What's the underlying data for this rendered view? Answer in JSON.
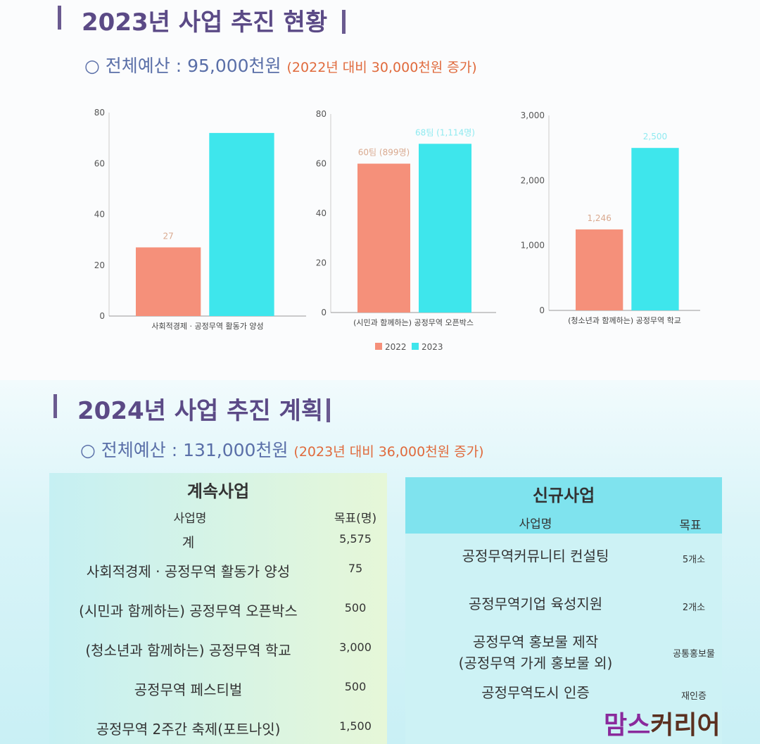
{
  "section2023": {
    "title": "2023년 사업 추진 현황",
    "budget": "○ 전체예산 : 95,000천원",
    "increase": "(2022년 대비 30,000천원 증가)"
  },
  "section2024": {
    "title": "2024년 사업 추진 계획",
    "budget": "○ 전체예산 : 131,000천원",
    "increase": "(2023년 대비 36,000천원 증가)"
  },
  "colors": {
    "y2022": "#f5907a",
    "y2023": "#3ee6ec"
  },
  "chart_data": [
    {
      "type": "bar",
      "title": "",
      "categories": [
        "사회적경제 · 공정무역 활동가 양성"
      ],
      "series": [
        {
          "name": "2022",
          "values": [
            27
          ]
        },
        {
          "name": "2023",
          "values": [
            72
          ]
        }
      ],
      "data_labels": [
        "27",
        ""
      ],
      "yticks": [
        "0",
        "20",
        "40",
        "60",
        "80"
      ],
      "ylim": [
        0,
        80
      ]
    },
    {
      "type": "bar",
      "title": "",
      "categories": [
        "(시민과 함께하는) 공정무역 오픈박스"
      ],
      "series": [
        {
          "name": "2022",
          "values": [
            60
          ]
        },
        {
          "name": "2023",
          "values": [
            68
          ]
        }
      ],
      "data_labels": [
        "60팀 (899명)",
        "68팀 (1,114명)"
      ],
      "yticks": [
        "0",
        "20",
        "40",
        "60",
        "80"
      ],
      "ylim": [
        0,
        80
      ]
    },
    {
      "type": "bar",
      "title": "",
      "categories": [
        "(청소년과 함께하는) 공정무역 학교"
      ],
      "series": [
        {
          "name": "2022",
          "values": [
            1246
          ]
        },
        {
          "name": "2023",
          "values": [
            2500
          ]
        }
      ],
      "data_labels": [
        "1,246",
        "2,500"
      ],
      "yticks": [
        "0",
        "1,000",
        "2,000",
        "3,000"
      ],
      "ylim": [
        0,
        3000
      ]
    }
  ],
  "legend": [
    "2022",
    "2023"
  ],
  "continuing": {
    "title": "계속사업",
    "col_name": "사업명",
    "col_target": "목표(명)",
    "rows": [
      {
        "name": "계",
        "target": "5,575"
      },
      {
        "name": "사회적경제 · 공정무역 활동가 양성",
        "target": "75"
      },
      {
        "name": "(시민과 함께하는) 공정무역 오픈박스",
        "target": "500"
      },
      {
        "name": "(청소년과 함께하는) 공정무역 학교",
        "target": "3,000"
      },
      {
        "name": "공정무역 페스티벌",
        "target": "500"
      },
      {
        "name": "공정무역 2주간 축제(포트나잇)",
        "target": "1,500"
      }
    ]
  },
  "new": {
    "title": "신규사업",
    "col_name": "사업명",
    "col_target": "목표",
    "rows": [
      {
        "name": "공정무역커뮤니티 컨설팅",
        "target": "5개소"
      },
      {
        "name": "공정무역기업 육성지원",
        "target": "2개소"
      },
      {
        "name": "공정무역 홍보물 제작",
        "name2": "(공정무역 가게 홍보물 외)",
        "target": "공통홍보물"
      },
      {
        "name": "공정무역도시 인증",
        "target": "재인증"
      }
    ]
  },
  "watermark": {
    "a": "맘스",
    "b": "커리어"
  }
}
